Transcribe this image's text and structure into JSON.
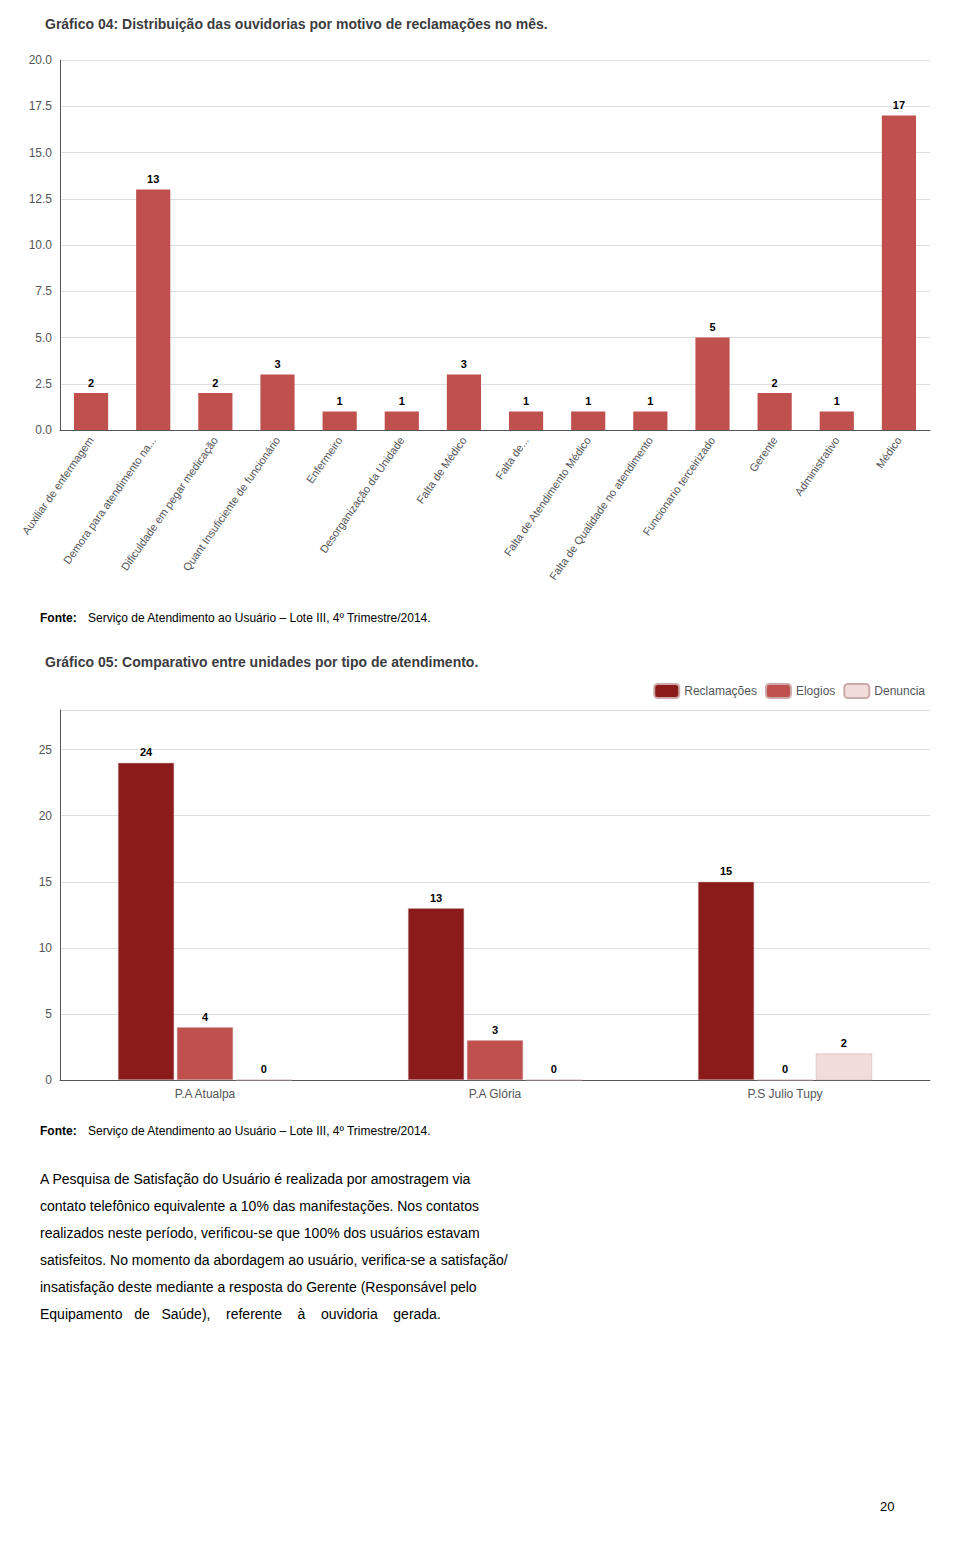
{
  "chart_data": [
    {
      "type": "bar",
      "title": "Gráfico 04: Distribuição das ouvidorias por motivo de reclamações no mês.",
      "categories": [
        "Auxiliar de enfermagem",
        "Demora para atendimento na...",
        "Dificuldade em pegar medicação",
        "Quant Insuficiente de funcionário",
        "Enfermeiro",
        "Desorganização da Unidade",
        "Falta de Médico",
        "Falta de...",
        "Falta de Atendimento Médico",
        "Falta de Qualidade no atendimento",
        "Funcionario terceirizado",
        "Gerente",
        "Administrativo",
        "Médico"
      ],
      "values": [
        2,
        13,
        2,
        3,
        1,
        1,
        3,
        1,
        1,
        1,
        5,
        2,
        1,
        17
      ],
      "color": "#c0504d",
      "ylim": [
        0,
        20
      ],
      "yticks": [
        {
          "value": 0,
          "label": "0.0"
        },
        {
          "value": 2.5,
          "label": "2.5"
        },
        {
          "value": 5,
          "label": "5.0"
        },
        {
          "value": 7.5,
          "label": "7.5"
        },
        {
          "value": 10,
          "label": "10.0"
        },
        {
          "value": 12.5,
          "label": "12.5"
        },
        {
          "value": 15,
          "label": "15.0"
        },
        {
          "value": 17.5,
          "label": "17.5"
        },
        {
          "value": 20,
          "label": "20.0"
        }
      ],
      "grid": true,
      "data_labels": true,
      "source_label": "Fonte:",
      "source": "Serviço de Atendimento ao Usuário – Lote III, 4º Trimestre/2014."
    },
    {
      "type": "bar",
      "title": "Gráfico 05: Comparativo entre unidades por tipo de atendimento.",
      "categories": [
        "P.A Atualpa",
        "P.A Glória",
        "P.S Julio Tupy"
      ],
      "series": [
        {
          "name": "Reclamações",
          "color": "#8b1a1a",
          "values": [
            24,
            13,
            15
          ]
        },
        {
          "name": "Elogios",
          "color": "#c0504d",
          "values": [
            4,
            3,
            0
          ]
        },
        {
          "name": "Denuncia",
          "color": "#f2dcdb",
          "values": [
            0,
            0,
            2
          ]
        }
      ],
      "ylim": [
        0,
        28
      ],
      "yticks": [
        0,
        5,
        10,
        15,
        20,
        25
      ],
      "grid": true,
      "legend": "upper right",
      "data_labels": true,
      "source_label": "Fonte:",
      "source": "Serviço de Atendimento ao Usuário – Lote III, 4º Trimestre/2014.",
      "text": [
        "A Pesquisa de Satisfação do Usuário é realizada por amostragem via",
        "contato telefônico equivalente a 10% das manifestações. Nos contatos",
        "realizados neste período, verificou-se que 100% dos usuários estavam",
        "satisfeitos. No momento da abordagem ao usuário, verifica-se a satisfação/",
        "insatisfação deste mediante a resposta do Gerente (Responsável pelo",
        "Equipamento   de   Saúde),    referente    à    ouvidoria    gerada."
      ],
      "page_number": "20"
    }
  ]
}
